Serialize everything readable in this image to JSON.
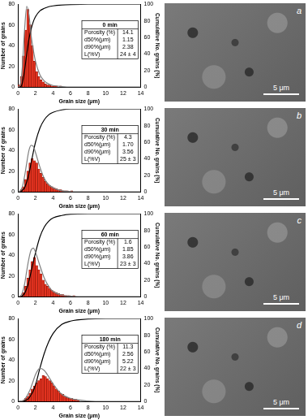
{
  "chart_data": [
    {
      "type": "bar",
      "x_label": "Grain size (μm)",
      "y_label": "Number of grains",
      "y2_label": "Cumulative No. grains (%)",
      "bins": [
        0,
        0.25,
        0.5,
        0.75,
        1,
        1.25,
        1.5,
        1.75,
        2,
        2.25,
        2.5,
        2.75,
        3,
        3.25,
        3.5,
        3.75,
        4,
        4.25,
        4.5,
        4.75,
        5,
        5.25,
        5.5,
        5.75,
        6,
        6.25,
        6.5,
        6.75,
        7
      ],
      "values": [
        2,
        10,
        30,
        55,
        75,
        60,
        40,
        25,
        15,
        10,
        7,
        5,
        3,
        2,
        2,
        1,
        1,
        1,
        0,
        1,
        0,
        0,
        0,
        0,
        0,
        0,
        0,
        0
      ],
      "color": "#e2321f",
      "series": [
        {
          "type": "line",
          "color": "#808080",
          "x": [
            0,
            0.25,
            0.5,
            0.75,
            1,
            1.25,
            1.5,
            1.75,
            2,
            2.5,
            3,
            3.5,
            4,
            5,
            6,
            8,
            10,
            12,
            14
          ],
          "values": [
            0,
            2,
            20,
            55,
            78,
            70,
            50,
            36,
            25,
            12,
            6,
            3,
            1.5,
            0.5,
            0,
            0,
            0,
            0,
            0
          ]
        },
        {
          "type": "line",
          "color": "#000000",
          "axis": "y2",
          "x": [
            0,
            0.25,
            0.5,
            0.75,
            1,
            1.25,
            1.5,
            1.75,
            2,
            2.5,
            3,
            3.5,
            4,
            5,
            6,
            8,
            10,
            12,
            14
          ],
          "values": [
            0,
            0,
            5,
            20,
            40,
            58,
            70,
            79,
            85,
            92,
            95,
            97,
            98,
            99,
            99.5,
            100,
            100,
            100,
            100
          ]
        }
      ],
      "xlim": [
        0,
        14
      ],
      "xticks": [
        0,
        2,
        4,
        6,
        8,
        10,
        12,
        14
      ],
      "ylim": [
        0,
        80
      ],
      "yticks": [
        0,
        20,
        40,
        60,
        80
      ],
      "y2lim": [
        0,
        100
      ],
      "y2ticks": [
        0,
        20,
        40,
        60,
        80,
        100
      ],
      "grid": false,
      "inset": {
        "title": "0 min",
        "rows": [
          [
            "Porosity (%)",
            "14.1"
          ],
          [
            "d50%(μm)",
            "1.15"
          ],
          [
            "d90%(μm)",
            "2.38"
          ],
          [
            "L(%V)",
            "24 ± 4"
          ]
        ]
      }
    },
    {
      "type": "bar",
      "x_label": "Grain size (μm)",
      "y_label": "Number of grains",
      "y2_label": "Cumulative No. grains (%)",
      "bins": [
        0,
        0.25,
        0.5,
        0.75,
        1,
        1.25,
        1.5,
        1.75,
        2,
        2.25,
        2.5,
        2.75,
        3,
        3.25,
        3.5,
        3.75,
        4,
        4.25,
        4.5,
        4.75,
        5,
        5.25,
        5.5,
        5.75,
        6,
        6.25,
        6.5,
        6.75,
        7
      ],
      "values": [
        0,
        2,
        5,
        12,
        20,
        28,
        32,
        30,
        28,
        22,
        18,
        14,
        10,
        8,
        6,
        5,
        4,
        3,
        2,
        2,
        1,
        1,
        1,
        0,
        1,
        0,
        0,
        0
      ],
      "color": "#e2321f",
      "series": [
        {
          "type": "line",
          "color": "#808080",
          "x": [
            0,
            0.25,
            0.5,
            0.75,
            1,
            1.25,
            1.5,
            1.75,
            2,
            2.5,
            3,
            3.5,
            4,
            5,
            6,
            8,
            10,
            12,
            14
          ],
          "values": [
            0,
            1,
            5,
            15,
            28,
            40,
            45,
            44,
            38,
            24,
            13,
            7,
            4,
            1,
            0.3,
            0,
            0,
            0,
            0
          ]
        },
        {
          "type": "line",
          "color": "#000000",
          "axis": "y2",
          "x": [
            0,
            0.25,
            0.5,
            0.75,
            1,
            1.25,
            1.5,
            1.75,
            2,
            2.5,
            3,
            3.5,
            4,
            5,
            6,
            8,
            10,
            12,
            14
          ],
          "values": [
            0,
            0,
            2,
            5,
            12,
            22,
            35,
            48,
            60,
            77,
            87,
            93,
            96,
            99,
            100,
            100,
            100,
            100,
            100
          ]
        }
      ],
      "xlim": [
        0,
        14
      ],
      "xticks": [
        0,
        2,
        4,
        6,
        8,
        10,
        12,
        14
      ],
      "ylim": [
        0,
        80
      ],
      "yticks": [
        0,
        20,
        40,
        60,
        80
      ],
      "y2lim": [
        0,
        100
      ],
      "y2ticks": [
        0,
        20,
        40,
        60,
        80,
        100
      ],
      "grid": false,
      "inset": {
        "title": "30 min",
        "rows": [
          [
            "Porosity (%)",
            "4.3"
          ],
          [
            "d50%(μm)",
            "1.70"
          ],
          [
            "d90%(μm)",
            "3.56"
          ],
          [
            "L(%V)",
            "25 ± 3"
          ]
        ]
      }
    },
    {
      "type": "bar",
      "x_label": "Grain size (μm)",
      "y_label": "Number of grains",
      "y2_label": "Cumulative No. grains (%)",
      "bins": [
        0,
        0.25,
        0.5,
        0.75,
        1,
        1.25,
        1.5,
        1.75,
        2,
        2.25,
        2.5,
        2.75,
        3,
        3.25,
        3.5,
        3.75,
        4,
        4.25,
        4.5,
        4.75,
        5,
        5.25,
        5.5,
        5.75,
        6,
        6.25,
        6.5,
        6.75,
        7
      ],
      "values": [
        0,
        1,
        4,
        10,
        18,
        26,
        34,
        38,
        30,
        26,
        22,
        16,
        12,
        10,
        8,
        6,
        5,
        4,
        3,
        2,
        2,
        1,
        1,
        1,
        0,
        1,
        0,
        0
      ],
      "color": "#e2321f",
      "series": [
        {
          "type": "line",
          "color": "#808080",
          "x": [
            0,
            0.25,
            0.5,
            0.75,
            1,
            1.25,
            1.5,
            1.75,
            2,
            2.5,
            3,
            3.5,
            4,
            5,
            6,
            8,
            10,
            12,
            14
          ],
          "values": [
            0,
            0.5,
            4,
            12,
            25,
            37,
            45,
            47,
            43,
            30,
            18,
            10,
            5,
            1.5,
            0.4,
            0,
            0,
            0,
            0
          ]
        },
        {
          "type": "line",
          "color": "#000000",
          "axis": "y2",
          "x": [
            0,
            0.25,
            0.5,
            0.75,
            1,
            1.25,
            1.5,
            1.75,
            2,
            2.5,
            3,
            3.5,
            4,
            5,
            6,
            8,
            10,
            12,
            14
          ],
          "values": [
            0,
            0,
            1,
            4,
            10,
            19,
            30,
            42,
            53,
            72,
            84,
            91,
            95,
            98,
            99.5,
            100,
            100,
            100,
            100
          ]
        }
      ],
      "xlim": [
        0,
        14
      ],
      "xticks": [
        0,
        2,
        4,
        6,
        8,
        10,
        12,
        14
      ],
      "ylim": [
        0,
        80
      ],
      "yticks": [
        0,
        20,
        40,
        60,
        80
      ],
      "y2lim": [
        0,
        100
      ],
      "y2ticks": [
        0,
        20,
        40,
        60,
        80,
        100
      ],
      "grid": false,
      "inset": {
        "title": "60 min",
        "rows": [
          [
            "Porosity (%)",
            "1.6"
          ],
          [
            "d50%(μm)",
            "1.85"
          ],
          [
            "d90%(μm)",
            "3.86"
          ],
          [
            "L(%V)",
            "23 ± 3"
          ]
        ]
      }
    },
    {
      "type": "bar",
      "x_label": "Grain size (μm)",
      "y_label": "Number of grains",
      "y2_label": "Cumulative No. grains (%)",
      "bins": [
        0,
        0.25,
        0.5,
        0.75,
        1,
        1.25,
        1.5,
        1.75,
        2,
        2.25,
        2.5,
        2.75,
        3,
        3.25,
        3.5,
        3.75,
        4,
        4.25,
        4.5,
        4.75,
        5,
        5.25,
        5.5,
        5.75,
        6,
        6.25,
        6.5,
        6.75,
        7
      ],
      "values": [
        0,
        0,
        1,
        3,
        5,
        8,
        12,
        15,
        18,
        20,
        22,
        25,
        24,
        22,
        20,
        18,
        15,
        12,
        10,
        8,
        7,
        5,
        4,
        3,
        3,
        2,
        2,
        1
      ],
      "color": "#e2321f",
      "series": [
        {
          "type": "line",
          "color": "#808080",
          "x": [
            0,
            0.25,
            0.5,
            0.75,
            1,
            1.25,
            1.5,
            1.75,
            2,
            2.5,
            3,
            3.5,
            4,
            5,
            6,
            8,
            10,
            12,
            14
          ],
          "values": [
            0,
            0,
            0.5,
            2,
            5,
            9,
            14,
            20,
            26,
            32,
            30,
            24,
            17,
            7,
            3,
            0.5,
            0,
            0,
            0
          ]
        },
        {
          "type": "line",
          "color": "#000000",
          "axis": "y2",
          "x": [
            0,
            0.25,
            0.5,
            0.75,
            1,
            1.25,
            1.5,
            1.75,
            2,
            2.5,
            3,
            3.5,
            4,
            5,
            6,
            8,
            10,
            12,
            14
          ],
          "values": [
            0,
            0,
            0,
            1,
            2,
            4,
            8,
            13,
            20,
            40,
            58,
            72,
            82,
            93,
            97,
            99.5,
            100,
            100,
            100
          ]
        }
      ],
      "xlim": [
        0,
        14
      ],
      "xticks": [
        0,
        2,
        4,
        6,
        8,
        10,
        12,
        14
      ],
      "ylim": [
        0,
        80
      ],
      "yticks": [
        0,
        20,
        40,
        60,
        80
      ],
      "y2lim": [
        0,
        100
      ],
      "y2ticks": [
        0,
        20,
        40,
        60,
        80,
        100
      ],
      "grid": false,
      "inset": {
        "title": "180 min",
        "rows": [
          [
            "Porosity (%)",
            "11.3"
          ],
          [
            "d50%(μm)",
            "2.56"
          ],
          [
            "d90%(μm)",
            "5.22"
          ],
          [
            "L(%V)",
            "22 ± 3"
          ]
        ]
      }
    }
  ],
  "images": [
    {
      "label": "a",
      "scale_bar": "5 μm"
    },
    {
      "label": "b",
      "scale_bar": "5 μm"
    },
    {
      "label": "c",
      "scale_bar": "5 μm"
    },
    {
      "label": "d",
      "scale_bar": "5 μm"
    }
  ]
}
